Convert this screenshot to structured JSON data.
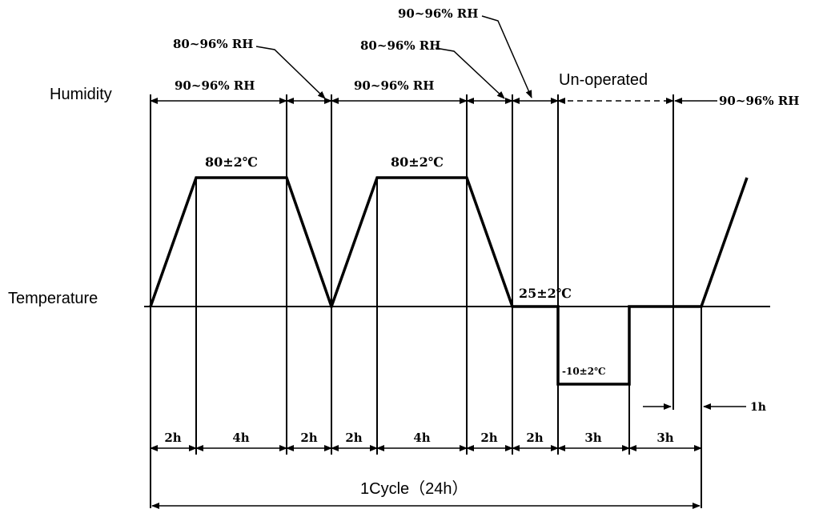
{
  "labels": {
    "humidity": "Humidity",
    "temperature": "Temperature",
    "un_operated": "Un-operated",
    "cycle": "1Cycle（24h）",
    "rh_a": "90~96% RH",
    "rh_b": "90~96% RH",
    "rh_c": "90~96% RH",
    "rh_d": "90~96% RH",
    "rh_e": "80~96% RH",
    "rh_f": "80~96% RH",
    "temp_high_1": "80±2℃",
    "temp_high_2": "80±2℃",
    "temp_room": "25±2℃",
    "temp_low": "-10±2℃",
    "offset_1h": "1h"
  },
  "durations": [
    "2h",
    "4h",
    "2h",
    "2h",
    "4h",
    "2h",
    "2h",
    "3h",
    "3h"
  ]
}
